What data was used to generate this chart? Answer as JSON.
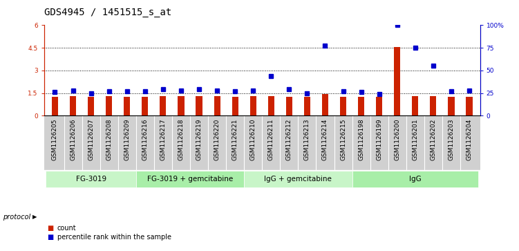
{
  "title": "GDS4945 / 1451515_s_at",
  "samples": [
    "GSM1126205",
    "GSM1126206",
    "GSM1126207",
    "GSM1126208",
    "GSM1126209",
    "GSM1126216",
    "GSM1126217",
    "GSM1126218",
    "GSM1126219",
    "GSM1126220",
    "GSM1126221",
    "GSM1126210",
    "GSM1126211",
    "GSM1126212",
    "GSM1126213",
    "GSM1126214",
    "GSM1126215",
    "GSM1126198",
    "GSM1126199",
    "GSM1126200",
    "GSM1126201",
    "GSM1126202",
    "GSM1126203",
    "GSM1126204"
  ],
  "counts": [
    1.25,
    1.28,
    1.26,
    1.28,
    1.27,
    1.27,
    1.28,
    1.28,
    1.28,
    1.28,
    1.27,
    1.28,
    1.28,
    1.27,
    1.27,
    1.42,
    1.27,
    1.27,
    1.27,
    4.55,
    1.32,
    1.3,
    1.27,
    1.27
  ],
  "percentiles": [
    26,
    28,
    25,
    27,
    27,
    27,
    29,
    28,
    29,
    28,
    27,
    28,
    44,
    29,
    25,
    77,
    27,
    26,
    24,
    100,
    75,
    55,
    27,
    28
  ],
  "groups": [
    {
      "label": "FG-3019",
      "start": 0,
      "end": 4
    },
    {
      "label": "FG-3019 + gemcitabine",
      "start": 5,
      "end": 10
    },
    {
      "label": "IgG + gemcitabine",
      "start": 11,
      "end": 16
    },
    {
      "label": "IgG",
      "start": 17,
      "end": 23
    }
  ],
  "group_colors": [
    "#c8f5c8",
    "#a8eea8",
    "#c8f5c8",
    "#a8eea8"
  ],
  "bar_color": "#cc2200",
  "dot_color": "#0000cc",
  "left_yticks": [
    0,
    1.5,
    3.0,
    4.5,
    6
  ],
  "left_ytick_labels": [
    "0",
    "1.5",
    "3",
    "4.5",
    "6"
  ],
  "right_yticks": [
    0,
    25,
    50,
    75,
    100
  ],
  "right_ytick_labels": [
    "0",
    "25",
    "50",
    "75",
    "100%"
  ],
  "hlines": [
    1.5,
    3.0,
    4.5
  ],
  "ylim_left": [
    0,
    6
  ],
  "ylim_right": [
    0,
    100
  ],
  "bar_width": 0.35,
  "protocol_label": "protocol",
  "legend_count_label": "count",
  "legend_percentile_label": "percentile rank within the sample",
  "title_fontsize": 10,
  "tick_fontsize": 6.5,
  "group_fontsize": 7.5,
  "axis_label_color_left": "#cc2200",
  "axis_label_color_right": "#0000cc",
  "label_bg_color": "#d0d0d0",
  "dot_size": 4
}
